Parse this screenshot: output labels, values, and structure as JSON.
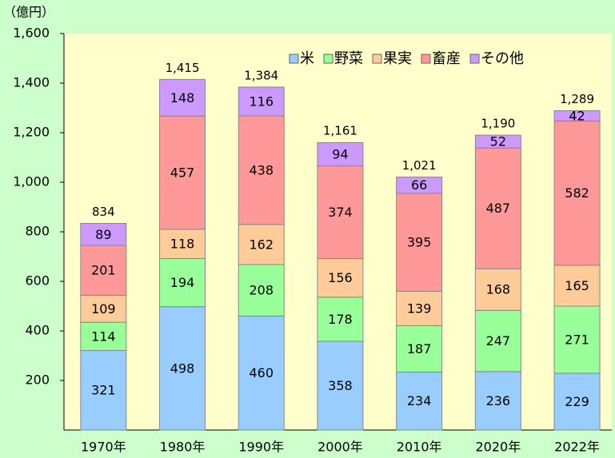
{
  "chart_data": {
    "type": "stacked_bar",
    "y_axis_label": "（億円）",
    "categories": [
      "1970年",
      "1980年",
      "1990年",
      "2000年",
      "2010年",
      "2020年",
      "2022年"
    ],
    "series": [
      {
        "name": "米",
        "color": "#99ccff",
        "values": [
          321,
          498,
          460,
          358,
          234,
          236,
          229
        ]
      },
      {
        "name": "野菜",
        "color": "#99ff99",
        "values": [
          114,
          194,
          208,
          178,
          187,
          247,
          271
        ]
      },
      {
        "name": "果実",
        "color": "#ffcc99",
        "values": [
          109,
          118,
          162,
          156,
          139,
          168,
          165
        ]
      },
      {
        "name": "畜産",
        "color": "#ff9999",
        "values": [
          201,
          457,
          438,
          374,
          395,
          487,
          582
        ]
      },
      {
        "name": "その他",
        "color": "#cc99ff",
        "values": [
          89,
          148,
          116,
          94,
          66,
          52,
          42
        ]
      }
    ],
    "totals": {
      "values": [
        834,
        1415,
        1384,
        1161,
        1021,
        1190,
        1289
      ],
      "value_labels": [
        "834",
        "1,415",
        "1,384",
        "1,161",
        "1,021",
        "1,190",
        "1,289"
      ]
    },
    "ylim": [
      0,
      1600
    ],
    "yticks": [
      200,
      400,
      600,
      800,
      {
        "value": 1000,
        "label": "1,000"
      },
      {
        "value": 1200,
        "label": "1,200"
      },
      {
        "value": 1400,
        "label": "1,400"
      },
      {
        "value": 1600,
        "label": "1,600"
      }
    ],
    "grid": false,
    "legend": "top"
  }
}
